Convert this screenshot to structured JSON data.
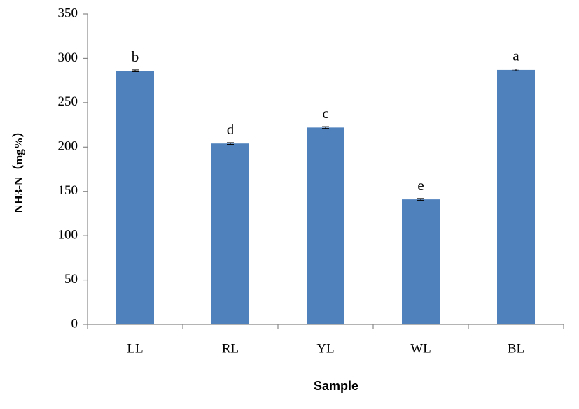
{
  "chart_data": {
    "type": "bar",
    "xlabel": "Sample",
    "ylabel": "NH3-N（mg%）",
    "categories": [
      "LL",
      "RL",
      "YL",
      "WL",
      "BL"
    ],
    "values": [
      286,
      204,
      222,
      141,
      287
    ],
    "errors": [
      1,
      1,
      1,
      1,
      1
    ],
    "letters": [
      "b",
      "d",
      "c",
      "e",
      "a"
    ],
    "color": "#4f81bd",
    "ylim": [
      0,
      350
    ],
    "yticks": [
      0,
      50,
      100,
      150,
      200,
      250,
      300,
      350
    ],
    "grid": false
  }
}
